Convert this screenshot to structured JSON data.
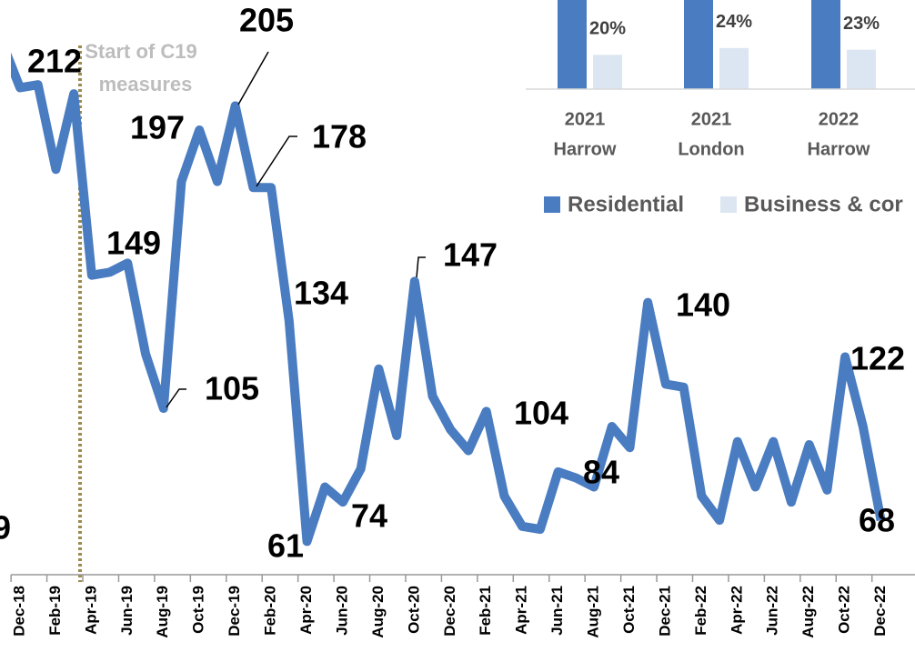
{
  "chart_data": [
    {
      "type": "line",
      "categories": [
        null,
        "Dec-18",
        null,
        "Feb-19",
        null,
        "Apr-19",
        null,
        "Jun-19",
        null,
        "Aug-19",
        null,
        "Oct-19",
        null,
        "Dec-19",
        null,
        "Feb-20",
        null,
        "Apr-20",
        null,
        "Jun-20",
        null,
        "Aug-20",
        null,
        "Oct-20",
        null,
        "Dec-20",
        null,
        "Feb-21",
        null,
        "Apr-21",
        null,
        "Jun-21",
        null,
        "Aug-21",
        null,
        "Oct-21",
        null,
        "Dec-21",
        null,
        "Feb-22",
        null,
        "Apr-22",
        null,
        "Jun-22",
        null,
        "Aug-22",
        null,
        "Oct-22",
        null,
        "Dec-22"
      ],
      "values": [
        226,
        211,
        212,
        184,
        209,
        149,
        150,
        153,
        123,
        105,
        180,
        197,
        180,
        205,
        178,
        178,
        134,
        61,
        79,
        74,
        85,
        118,
        96,
        147,
        109,
        98,
        91,
        104,
        76,
        66,
        65,
        84,
        82,
        79,
        99,
        92,
        140,
        113,
        112,
        76,
        68,
        94,
        79,
        94,
        74,
        93,
        78,
        122,
        99,
        68
      ],
      "value_labels": [
        null,
        null,
        "212",
        null,
        null,
        "149",
        null,
        null,
        null,
        "105",
        null,
        "197",
        null,
        "205",
        "178",
        null,
        "134",
        "61",
        null,
        "74",
        null,
        null,
        null,
        "147",
        null,
        null,
        null,
        "104",
        null,
        null,
        null,
        "84",
        null,
        null,
        null,
        null,
        "140",
        null,
        null,
        null,
        null,
        null,
        null,
        null,
        null,
        null,
        null,
        "122",
        null,
        "68"
      ],
      "color": "#4a7cc1",
      "ylim": [
        50,
        240
      ],
      "annotations": [
        "Start of C19",
        "measures",
        "9"
      ]
    },
    {
      "type": "bar",
      "categories": [
        [
          "2021",
          "Harrow"
        ],
        [
          "2021",
          "London"
        ],
        [
          "2022",
          "Harrow"
        ]
      ],
      "series": [
        {
          "name": "Residential",
          "color": "#4a7cc1",
          "values": [
            80,
            76,
            77
          ]
        },
        {
          "name": "Business & cor",
          "color": "#dce6f2",
          "values": [
            20,
            24,
            23
          ],
          "value_labels": [
            "20%",
            "24%",
            "23%"
          ]
        }
      ],
      "ylim": [
        0,
        52
      ]
    }
  ]
}
